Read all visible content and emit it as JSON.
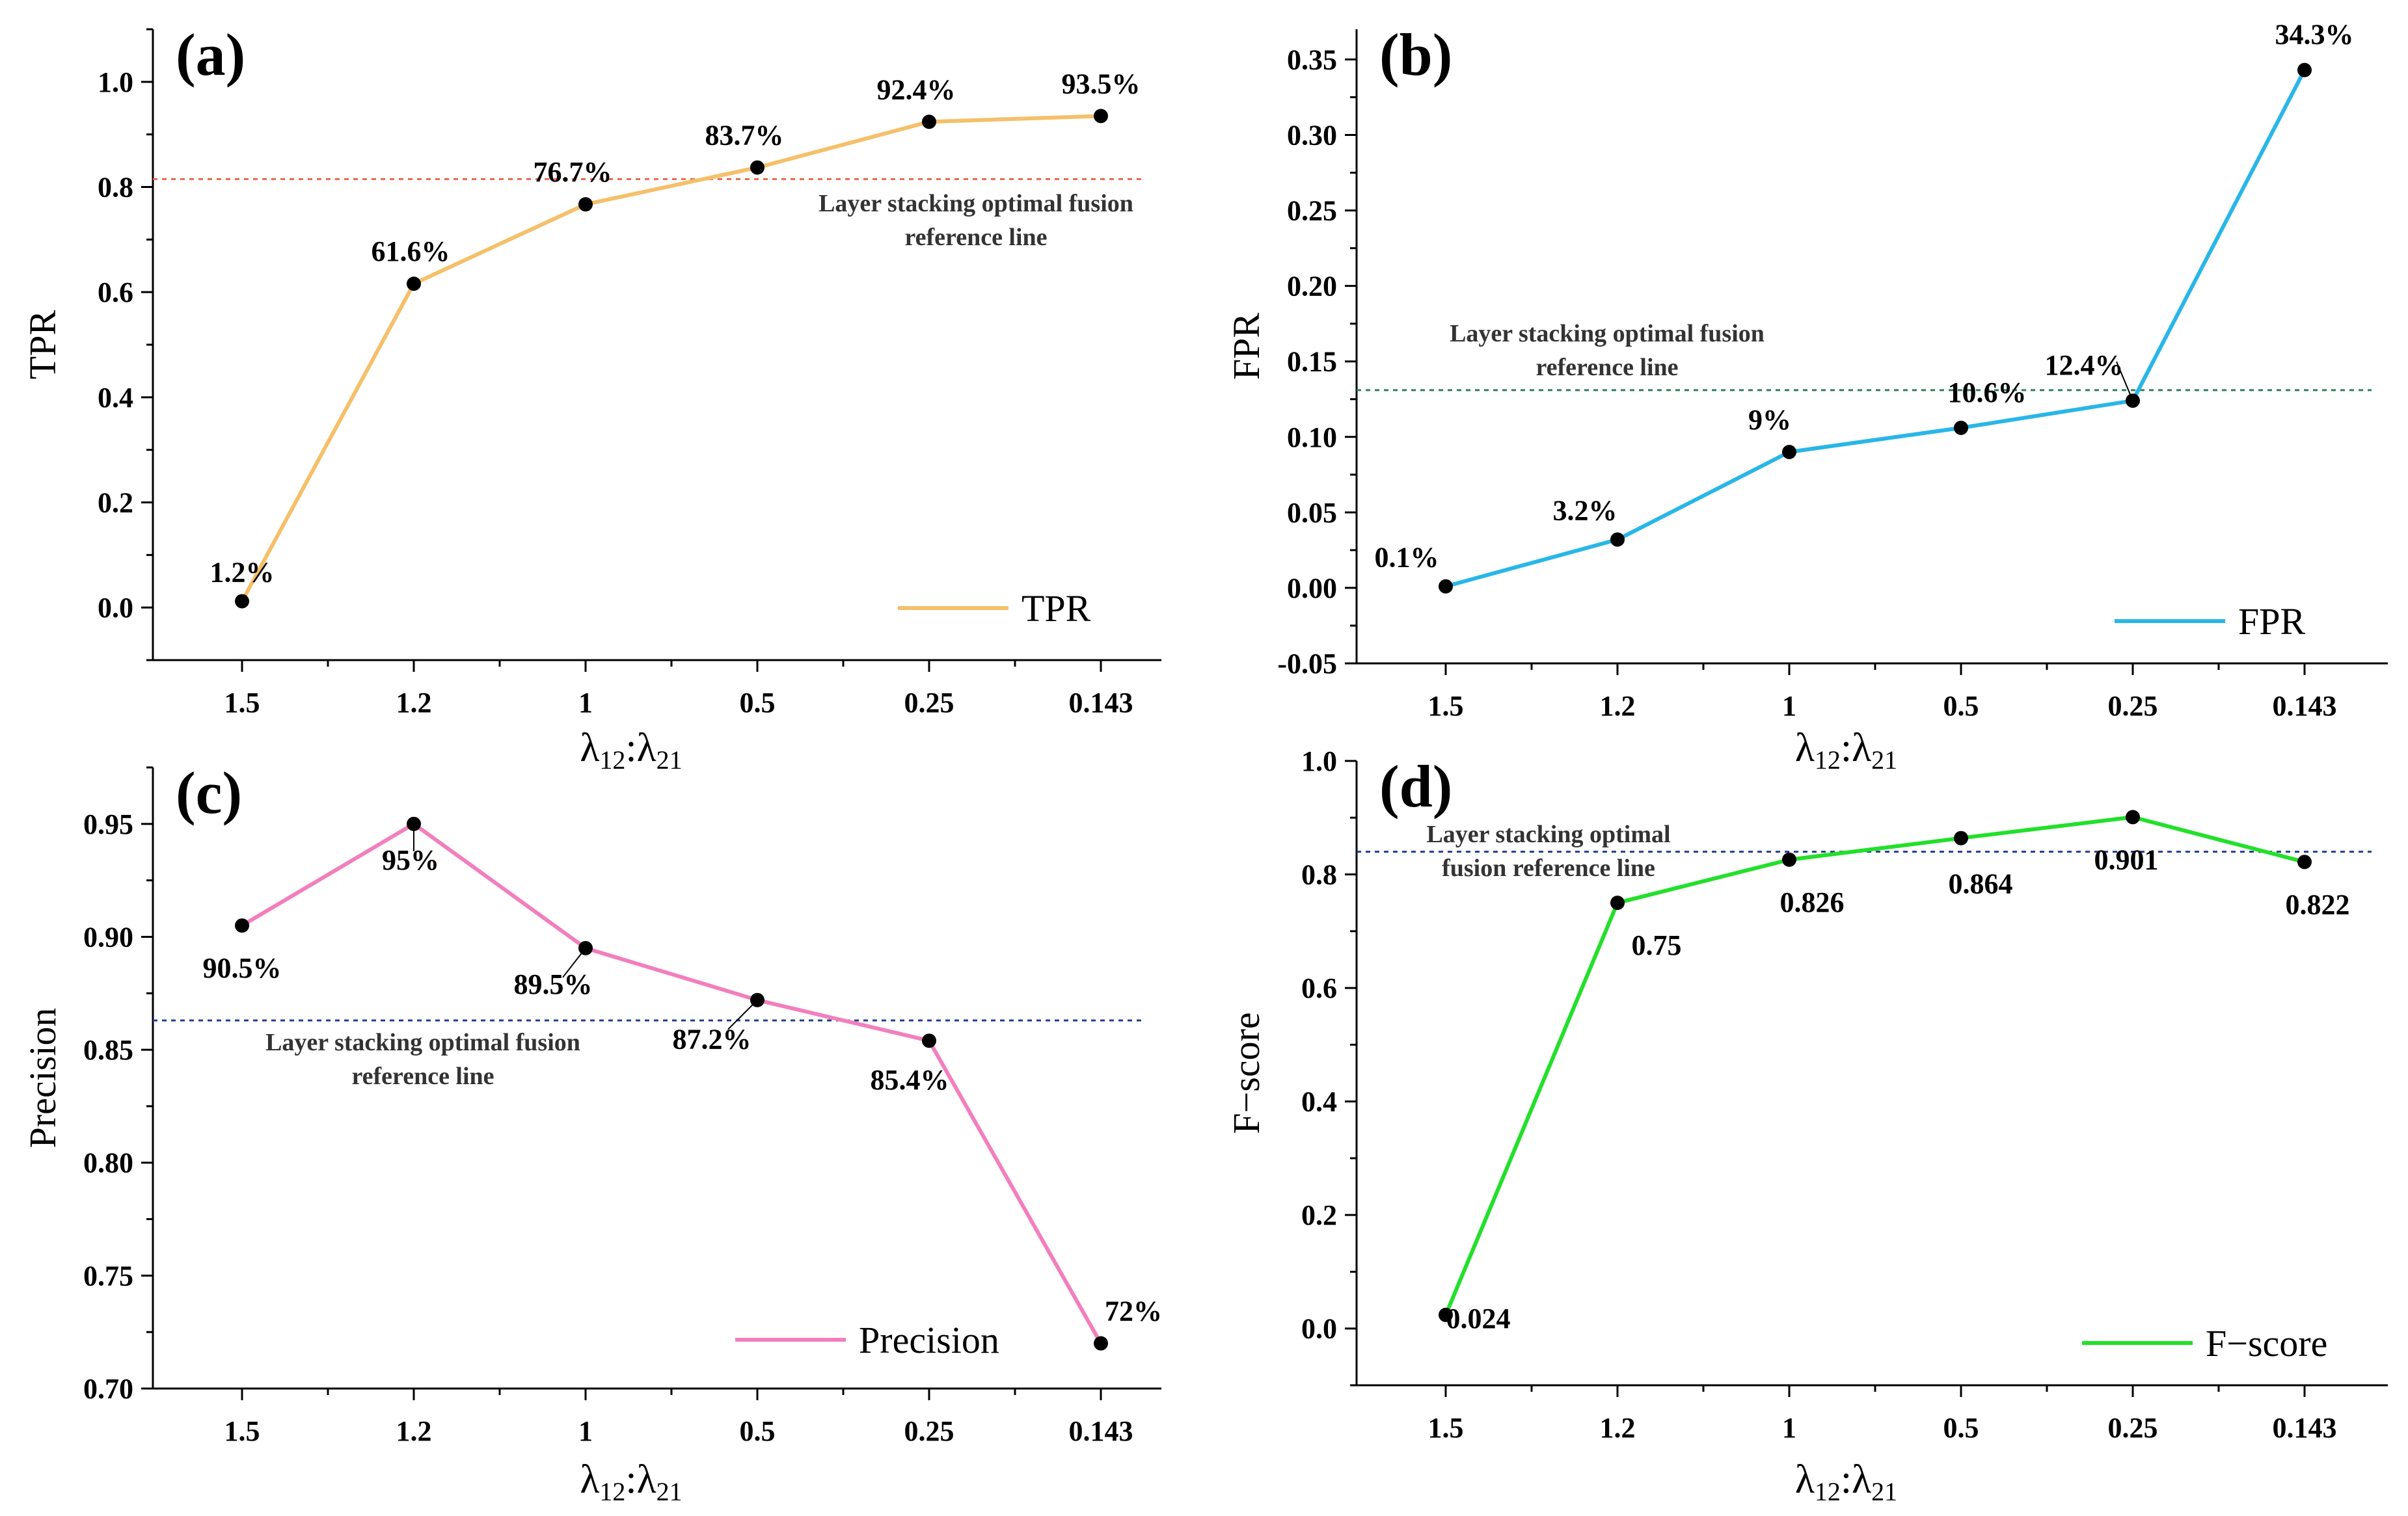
{
  "chart_data": [
    {
      "panel": "(a)",
      "type": "line",
      "categories": [
        "1.5",
        "1.2",
        "1",
        "0.5",
        "0.25",
        "0.143"
      ],
      "series": [
        {
          "name": "TPR",
          "values": [
            0.012,
            0.616,
            0.767,
            0.837,
            0.924,
            0.935
          ],
          "color": "#f5c06a"
        }
      ],
      "point_labels": [
        "1.2%",
        "61.6%",
        "76.7%",
        "83.7%",
        "92.4%",
        "93.5%"
      ],
      "yticks": [
        0.0,
        0.2,
        0.4,
        0.6,
        0.8,
        1.0
      ],
      "ytick_labels": [
        "0.0",
        "0.2",
        "0.4",
        "0.6",
        "0.8",
        "1.0"
      ],
      "ylim": [
        -0.1,
        1.1
      ],
      "ylabel": "TPR",
      "xlabel": "λ12:λ21",
      "reference_line": {
        "value": 0.815,
        "color": "#e8674f",
        "label_lines": [
          "Layer stacking optimal fusion",
          "reference line"
        ]
      },
      "legend": {
        "label": "TPR",
        "position": "bottom-right"
      }
    },
    {
      "panel": "(b)",
      "type": "line",
      "categories": [
        "1.5",
        "1.2",
        "1",
        "0.5",
        "0.25",
        "0.143"
      ],
      "series": [
        {
          "name": "FPR",
          "values": [
            0.001,
            0.032,
            0.09,
            0.106,
            0.124,
            0.343
          ],
          "color": "#29b6e8"
        }
      ],
      "point_labels": [
        "0.1%",
        "3.2%",
        "9%",
        "10.6%",
        "12.4%",
        "34.3%"
      ],
      "yticks": [
        -0.05,
        0.0,
        0.05,
        0.1,
        0.15,
        0.2,
        0.25,
        0.3,
        0.35
      ],
      "ytick_labels": [
        "-0.05",
        "0.00",
        "0.05",
        "0.10",
        "0.15",
        "0.20",
        "0.25",
        "0.30",
        "0.35"
      ],
      "ylim": [
        -0.05,
        0.37
      ],
      "ylabel": "FPR",
      "xlabel": "λ12:λ21",
      "reference_line": {
        "value": 0.131,
        "color": "#2e7d5b",
        "label_lines": [
          "Layer stacking optimal fusion",
          "reference line"
        ]
      },
      "legend": {
        "label": "FPR",
        "position": "bottom-right"
      }
    },
    {
      "panel": "(c)",
      "type": "line",
      "categories": [
        "1.5",
        "1.2",
        "1",
        "0.5",
        "0.25",
        "0.143"
      ],
      "series": [
        {
          "name": "Precision",
          "values": [
            0.905,
            0.95,
            0.895,
            0.872,
            0.854,
            0.72
          ],
          "color": "#f27fbd"
        }
      ],
      "point_labels": [
        "90.5%",
        "95%",
        "89.5%",
        "87.2%",
        "85.4%",
        "72%"
      ],
      "yticks": [
        0.7,
        0.75,
        0.8,
        0.85,
        0.9,
        0.95
      ],
      "ytick_labels": [
        "0.70",
        "0.75",
        "0.80",
        "0.85",
        "0.90",
        "0.95"
      ],
      "ylim": [
        0.7,
        0.975
      ],
      "ylabel": "Precision",
      "xlabel": "λ12:λ21",
      "reference_line": {
        "value": 0.863,
        "color": "#1f3f8f",
        "label_lines": [
          "Layer stacking optimal fusion",
          "reference line"
        ]
      },
      "legend": {
        "label": "Precision",
        "position": "bottom-right"
      }
    },
    {
      "panel": "(d)",
      "type": "line",
      "categories": [
        "1.5",
        "1.2",
        "1",
        "0.5",
        "0.25",
        "0.143"
      ],
      "series": [
        {
          "name": "F−score",
          "values": [
            0.024,
            0.75,
            0.826,
            0.864,
            0.901,
            0.822
          ],
          "color": "#22e02a"
        }
      ],
      "point_labels": [
        "0.024",
        "0.75",
        "0.826",
        "0.864",
        "0.901",
        "0.822"
      ],
      "yticks": [
        0.0,
        0.2,
        0.4,
        0.6,
        0.8,
        1.0
      ],
      "ytick_labels": [
        "0.0",
        "0.2",
        "0.4",
        "0.6",
        "0.8",
        "1.0"
      ],
      "ylim": [
        -0.1,
        1.0
      ],
      "ylabel": "F−score",
      "xlabel": "λ12:λ21",
      "reference_line": {
        "value": 0.84,
        "color": "#1f3f8f",
        "label_lines": [
          "Layer stacking optimal",
          "fusion reference line"
        ]
      },
      "legend": {
        "label": "F−score",
        "position": "bottom-right"
      }
    }
  ]
}
